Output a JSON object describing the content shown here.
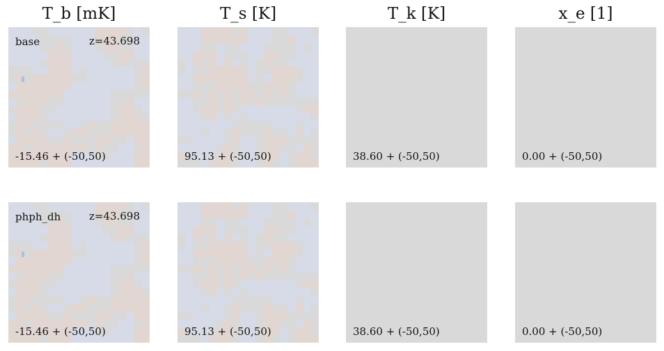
{
  "chart_data": {
    "type": "heatmap",
    "columns": [
      "T_b [mK]",
      "T_s [K]",
      "T_k [K]",
      "x_e [1]"
    ],
    "rows": [
      {
        "name": "base",
        "redshift_label": "z=43.698",
        "panels": [
          {
            "field": "T_b",
            "mean_label": "-15.46 + (-50,50)",
            "mean": -15.46,
            "range": [
              -50,
              50
            ]
          },
          {
            "field": "T_s",
            "mean_label": "95.13 + (-50,50)",
            "mean": 95.13,
            "range": [
              -50,
              50
            ]
          },
          {
            "field": "T_k",
            "mean_label": "38.60 + (-50,50)",
            "mean": 38.6,
            "range": [
              -50,
              50
            ]
          },
          {
            "field": "x_e",
            "mean_label": "0.00 + (-50,50)",
            "mean": 0.0,
            "range": [
              -50,
              50
            ]
          }
        ]
      },
      {
        "name": "phph_dh",
        "redshift_label": "z=43.698",
        "panels": [
          {
            "field": "T_b",
            "mean_label": "-15.46 + (-50,50)",
            "mean": -15.46,
            "range": [
              -50,
              50
            ]
          },
          {
            "field": "T_s",
            "mean_label": "95.13 + (-50,50)",
            "mean": 95.13,
            "range": [
              -50,
              50
            ]
          },
          {
            "field": "T_k",
            "mean_label": "38.60 + (-50,50)",
            "mean": 38.6,
            "range": [
              -50,
              50
            ]
          },
          {
            "field": "x_e",
            "mean_label": "0.00 + (-50,50)",
            "mean": 0.0,
            "range": [
              -50,
              50
            ]
          }
        ]
      }
    ],
    "colormap": {
      "low": "#d6dbe7",
      "mid": "#d9d9d9",
      "high": "#e2d6d2",
      "outlier": "#a9bfe6"
    }
  }
}
